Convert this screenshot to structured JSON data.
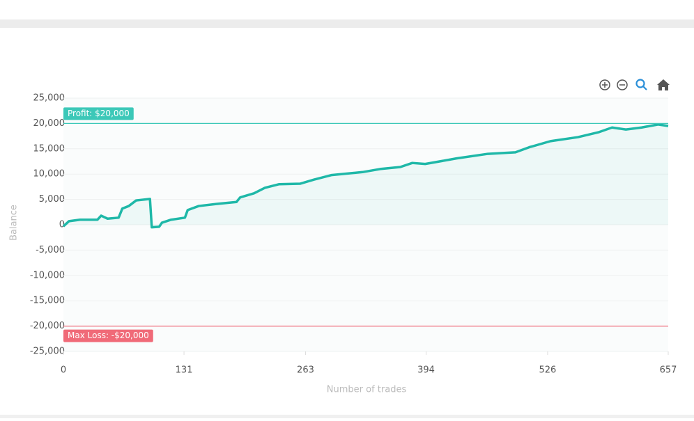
{
  "chart_data": {
    "type": "line",
    "x_label": "Number of trades",
    "y_label": "Balance",
    "xlim": [
      0,
      657
    ],
    "xticks": [
      0,
      131,
      263,
      394,
      526,
      657
    ],
    "ylim": [
      -25000,
      25000
    ],
    "yticks": [
      {
        "value": -25000,
        "label": "-25,000"
      },
      {
        "value": -20000,
        "label": "-20,000"
      },
      {
        "value": -15000,
        "label": "-15,000"
      },
      {
        "value": -10000,
        "label": "-10,000"
      },
      {
        "value": -5000,
        "label": "-5,000"
      },
      0,
      {
        "value": 5000,
        "label": "5,000"
      },
      {
        "value": 10000,
        "label": "10,000"
      },
      {
        "value": 15000,
        "label": "15,000"
      },
      {
        "value": 20000,
        "label": "20,000"
      },
      {
        "value": 25000,
        "label": "25,000"
      }
    ],
    "grid": true,
    "annotations": [
      {
        "value": 20000,
        "label": "Profit: $20,000",
        "color": "#3cc8b8"
      },
      {
        "value": -20000,
        "label": "Max Loss: -$20,000",
        "color": "#f06a78"
      }
    ],
    "series": [
      {
        "name": "Balance",
        "color": "#1fb8a8",
        "x": [
          0,
          6,
          18,
          26,
          37,
          41,
          48,
          60,
          64,
          71,
          79,
          94,
          96,
          104,
          107,
          117,
          132,
          135,
          147,
          166,
          188,
          192,
          207,
          219,
          234,
          257,
          272,
          291,
          325,
          344,
          366,
          379,
          393,
          427,
          461,
          491,
          506,
          529,
          559,
          582,
          596,
          611,
          628,
          646,
          657
        ],
        "values": [
          -300,
          700,
          1000,
          1000,
          1000,
          1800,
          1200,
          1400,
          3200,
          3700,
          4800,
          5100,
          -500,
          -400,
          400,
          1000,
          1400,
          2900,
          3700,
          4100,
          4500,
          5400,
          6200,
          7300,
          8000,
          8100,
          8900,
          9800,
          10400,
          11000,
          11400,
          12200,
          12000,
          13100,
          14000,
          14300,
          15300,
          16500,
          17300,
          18300,
          19200,
          18800,
          19200,
          19800,
          19500
        ]
      }
    ]
  }
}
